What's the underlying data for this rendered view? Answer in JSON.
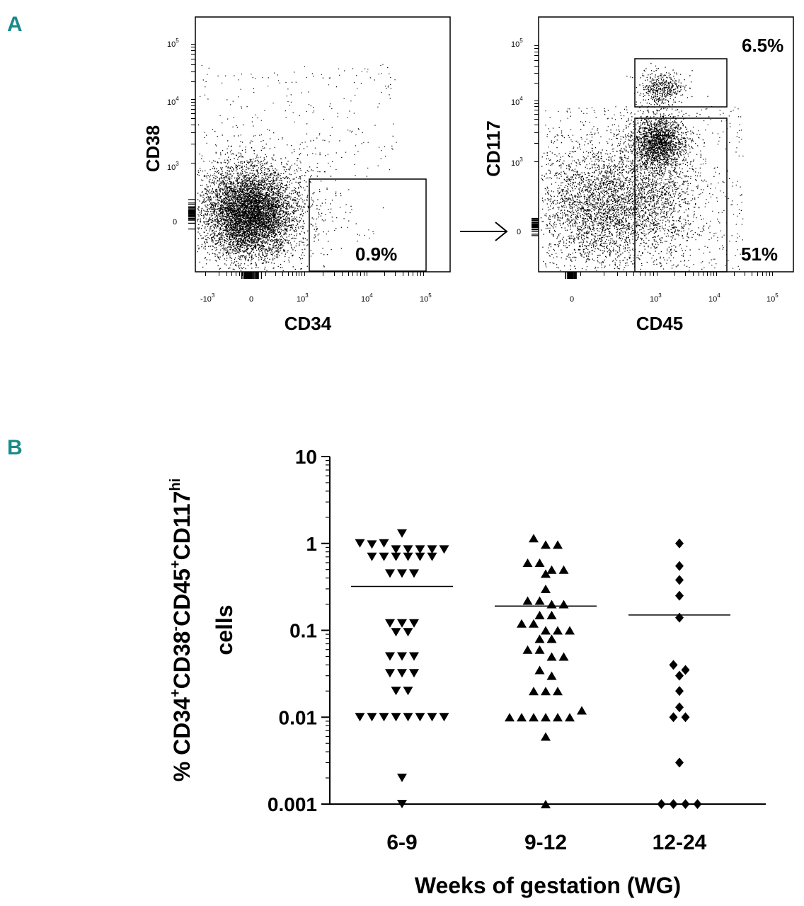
{
  "panel_a": {
    "label": "A",
    "plots": [
      {
        "id": "left",
        "y_title": "CD38",
        "x_title": "CD34",
        "y_ticks": [
          {
            "base": "10",
            "exp": "5"
          },
          {
            "base": "10",
            "exp": "4"
          },
          {
            "base": "10",
            "exp": "3"
          },
          {
            "base": "0",
            "exp": ""
          }
        ],
        "x_ticks": [
          {
            "base": "-10",
            "exp": "3"
          },
          {
            "base": "0",
            "exp": ""
          },
          {
            "base": "10",
            "exp": "3"
          },
          {
            "base": "10",
            "exp": "4"
          },
          {
            "base": "10",
            "exp": "5"
          }
        ],
        "gates": [
          {
            "label": "0.9%"
          }
        ]
      },
      {
        "id": "right",
        "y_title": "CD117",
        "x_title": "CD45",
        "y_ticks": [
          {
            "base": "10",
            "exp": "5"
          },
          {
            "base": "10",
            "exp": "4"
          },
          {
            "base": "10",
            "exp": "3"
          },
          {
            "base": "0",
            "exp": ""
          }
        ],
        "x_ticks": [
          {
            "base": "0",
            "exp": ""
          },
          {
            "base": "10",
            "exp": "3"
          },
          {
            "base": "10",
            "exp": "4"
          },
          {
            "base": "10",
            "exp": "5"
          }
        ],
        "gates": [
          {
            "label": "6.5%"
          },
          {
            "label": "51%"
          }
        ]
      }
    ]
  },
  "panel_b": {
    "label": "B"
  },
  "chart_data": {
    "type": "scatter",
    "scale": "log",
    "title": "",
    "xlabel": "Weeks of gestation (WG)",
    "ylabel": {
      "prefix": "% CD34",
      "sup1": "+",
      "mid1": "CD38",
      "sup2": "-",
      "mid2": "CD45",
      "sup3": "+",
      "mid3": "CD117",
      "sup4": "hi",
      "line2": "cells"
    },
    "ylim": [
      0.001,
      10
    ],
    "y_ticks": [
      {
        "value": 10,
        "label": "10"
      },
      {
        "value": 1,
        "label": "1"
      },
      {
        "value": 0.1,
        "label": "0.1"
      },
      {
        "value": 0.01,
        "label": "0.01"
      },
      {
        "value": 0.001,
        "label": "0.001"
      }
    ],
    "categories": [
      "6-9",
      "9-12",
      "12-24"
    ],
    "series": [
      {
        "name": "6-9",
        "marker": "triangle-down",
        "mean": 0.32,
        "points": [
          1.3,
          1.0,
          0.97,
          1.0,
          0.85,
          0.85,
          0.85,
          0.85,
          0.85,
          0.7,
          0.7,
          0.7,
          0.7,
          0.7,
          0.7,
          0.45,
          0.45,
          0.45,
          0.12,
          0.12,
          0.12,
          0.095,
          0.095,
          0.05,
          0.05,
          0.05,
          0.032,
          0.032,
          0.032,
          0.02,
          0.02,
          0.01,
          0.01,
          0.01,
          0.01,
          0.01,
          0.01,
          0.01,
          0.01,
          0.002,
          0.001
        ]
      },
      {
        "name": "9-12",
        "marker": "triangle-up",
        "mean": 0.19,
        "points": [
          1.15,
          0.97,
          0.97,
          0.6,
          0.6,
          0.5,
          0.5,
          0.45,
          0.3,
          0.22,
          0.22,
          0.2,
          0.2,
          0.15,
          0.15,
          0.12,
          0.12,
          0.1,
          0.1,
          0.1,
          0.08,
          0.08,
          0.06,
          0.06,
          0.05,
          0.05,
          0.035,
          0.03,
          0.02,
          0.02,
          0.02,
          0.01,
          0.01,
          0.01,
          0.01,
          0.01,
          0.01,
          0.012,
          0.006,
          0.001
        ]
      },
      {
        "name": "12-24",
        "marker": "diamond",
        "mean": 0.15,
        "points": [
          1.0,
          0.55,
          0.38,
          0.25,
          0.14,
          0.04,
          0.035,
          0.03,
          0.02,
          0.013,
          0.01,
          0.01,
          0.003,
          0.001,
          0.001,
          0.001,
          0.001
        ]
      }
    ]
  }
}
